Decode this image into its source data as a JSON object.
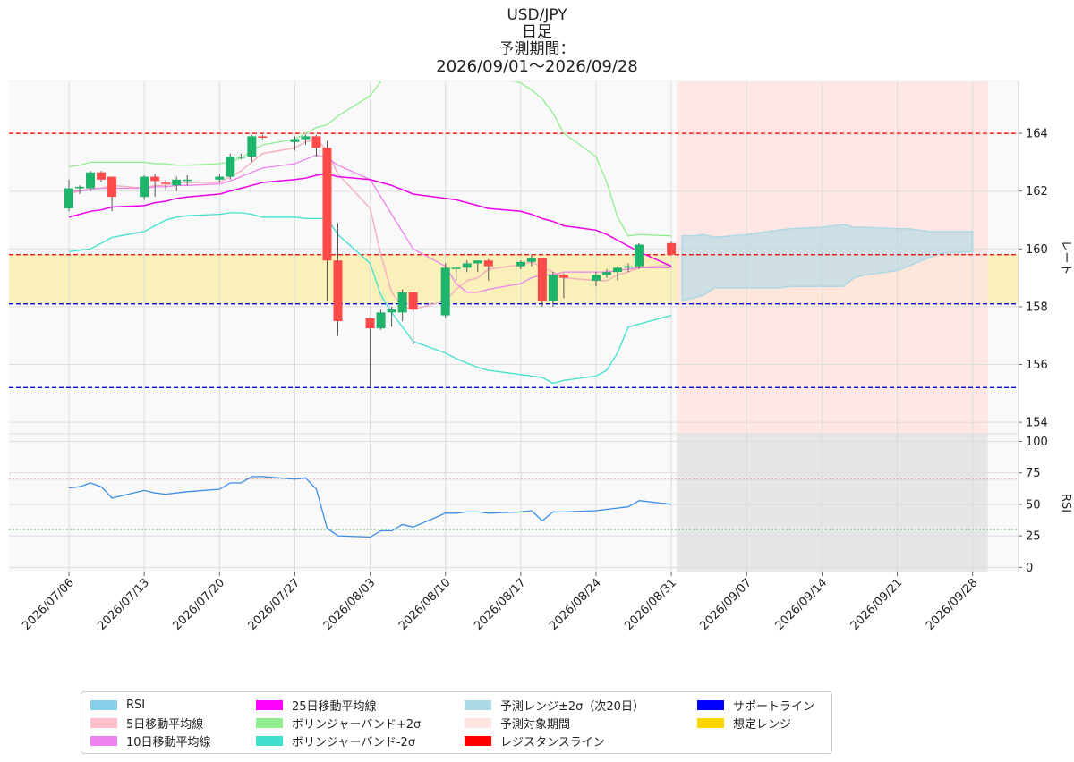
{
  "title": {
    "line1": "USD/JPY",
    "line2": "日足",
    "line3": "予測期間：",
    "line4": "2026/09/01〜2026/09/28"
  },
  "colors": {
    "up": "#1fb46b",
    "down": "#ff4a4a",
    "ma5": "#f3b3bd",
    "ma10": "#ee82ee",
    "ma25": "#ee00ee",
    "bb_upper": "#90ee90",
    "bb_lower": "#40e0d0",
    "forecast_band": "#add8e6",
    "forecast_period": "#ffe4e1",
    "assumed_range": "#ffd700",
    "support": "#0000dd",
    "resistance": "#ee0000",
    "rsi": "#3b8ee8"
  },
  "chart_data": [
    {
      "type": "candlestick",
      "ylabel": "レート",
      "ylim": [
        153.6,
        165.8
      ],
      "yticks": [
        "154",
        "156",
        "158",
        "160",
        "162",
        "164"
      ],
      "xticks": [
        "2026/07/06",
        "2026/07/13",
        "2026/07/20",
        "2026/07/27",
        "2026/08/03",
        "2026/08/10",
        "2026/08/17",
        "2026/08/24",
        "2026/08/31",
        "2026/09/07",
        "2026/09/14",
        "2026/09/21",
        "2026/09/28"
      ],
      "resistance_lines": [
        164.0,
        159.8
      ],
      "support_lines": [
        158.1,
        155.2
      ],
      "assumed_range": [
        158.1,
        159.8
      ],
      "forecast_period": [
        "2026/09/01",
        "2026/09/28"
      ],
      "candles": [
        {
          "date": "2026/07/06",
          "open": 161.4,
          "high": 162.4,
          "low": 161.3,
          "close": 162.1
        },
        {
          "date": "2026/07/07",
          "open": 162.1,
          "high": 162.2,
          "low": 161.9,
          "close": 162.15
        },
        {
          "date": "2026/07/08",
          "open": 162.1,
          "high": 162.7,
          "low": 162.0,
          "close": 162.65
        },
        {
          "date": "2026/07/09",
          "open": 162.65,
          "high": 162.7,
          "low": 162.3,
          "close": 162.4
        },
        {
          "date": "2026/07/10",
          "open": 162.5,
          "high": 162.5,
          "low": 161.3,
          "close": 161.8
        },
        {
          "date": "2026/07/13",
          "open": 161.8,
          "high": 162.55,
          "low": 161.7,
          "close": 162.5
        },
        {
          "date": "2026/07/14",
          "open": 162.5,
          "high": 162.6,
          "low": 161.8,
          "close": 162.35
        },
        {
          "date": "2026/07/15",
          "open": 162.3,
          "high": 162.4,
          "low": 162.0,
          "close": 162.25
        },
        {
          "date": "2026/07/16",
          "open": 162.2,
          "high": 162.5,
          "low": 162.0,
          "close": 162.4
        },
        {
          "date": "2026/07/17",
          "open": 162.4,
          "high": 162.55,
          "low": 162.2,
          "close": 162.4
        },
        {
          "date": "2026/07/20",
          "open": 162.4,
          "high": 162.6,
          "low": 162.3,
          "close": 162.5
        },
        {
          "date": "2026/07/21",
          "open": 162.5,
          "high": 163.3,
          "low": 162.4,
          "close": 163.2
        },
        {
          "date": "2026/07/22",
          "open": 163.2,
          "high": 163.3,
          "low": 163.1,
          "close": 163.2
        },
        {
          "date": "2026/07/23",
          "open": 163.2,
          "high": 163.95,
          "low": 163.0,
          "close": 163.9
        },
        {
          "date": "2026/07/24",
          "open": 163.9,
          "high": 163.95,
          "low": 163.8,
          "close": 163.85
        },
        {
          "date": "2026/07/27",
          "open": 163.7,
          "high": 163.9,
          "low": 163.4,
          "close": 163.8
        },
        {
          "date": "2026/07/28",
          "open": 163.8,
          "high": 163.95,
          "low": 163.6,
          "close": 163.9
        },
        {
          "date": "2026/07/29",
          "open": 163.9,
          "high": 163.95,
          "low": 163.2,
          "close": 163.5
        },
        {
          "date": "2026/07/30",
          "open": 163.5,
          "high": 163.75,
          "low": 158.2,
          "close": 159.6
        },
        {
          "date": "2026/07/31",
          "open": 159.6,
          "high": 160.9,
          "low": 157.0,
          "close": 157.5
        },
        {
          "date": "2026/08/03",
          "open": 157.6,
          "high": 157.6,
          "low": 155.2,
          "close": 157.25
        },
        {
          "date": "2026/08/04",
          "open": 157.25,
          "high": 157.9,
          "low": 157.2,
          "close": 157.8
        },
        {
          "date": "2026/08/05",
          "open": 157.8,
          "high": 158.0,
          "low": 157.3,
          "close": 157.9
        },
        {
          "date": "2026/08/06",
          "open": 157.8,
          "high": 158.6,
          "low": 157.5,
          "close": 158.5
        },
        {
          "date": "2026/08/07",
          "open": 158.5,
          "high": 158.5,
          "low": 156.7,
          "close": 157.9
        },
        {
          "date": "2026/08/10",
          "open": 157.7,
          "high": 159.5,
          "low": 157.6,
          "close": 159.35
        },
        {
          "date": "2026/08/11",
          "open": 159.35,
          "high": 159.4,
          "low": 158.9,
          "close": 159.35
        },
        {
          "date": "2026/08/12",
          "open": 159.35,
          "high": 159.6,
          "low": 159.2,
          "close": 159.5
        },
        {
          "date": "2026/08/13",
          "open": 159.5,
          "high": 159.6,
          "low": 159.2,
          "close": 159.6
        },
        {
          "date": "2026/08/14",
          "open": 159.6,
          "high": 159.65,
          "low": 158.9,
          "close": 159.4
        },
        {
          "date": "2026/08/17",
          "open": 159.4,
          "high": 159.6,
          "low": 159.3,
          "close": 159.55
        },
        {
          "date": "2026/08/18",
          "open": 159.55,
          "high": 159.8,
          "low": 159.4,
          "close": 159.7
        },
        {
          "date": "2026/08/19",
          "open": 159.7,
          "high": 159.7,
          "low": 158.0,
          "close": 158.2
        },
        {
          "date": "2026/08/20",
          "open": 158.2,
          "high": 159.2,
          "low": 158.0,
          "close": 159.1
        },
        {
          "date": "2026/08/21",
          "open": 159.1,
          "high": 159.15,
          "low": 158.3,
          "close": 159.0
        },
        {
          "date": "2026/08/24",
          "open": 158.9,
          "high": 159.2,
          "low": 158.7,
          "close": 159.1
        },
        {
          "date": "2026/08/25",
          "open": 159.1,
          "high": 159.3,
          "low": 159.0,
          "close": 159.2
        },
        {
          "date": "2026/08/26",
          "open": 159.2,
          "high": 159.4,
          "low": 158.9,
          "close": 159.35
        },
        {
          "date": "2026/08/27",
          "open": 159.35,
          "high": 159.5,
          "low": 159.2,
          "close": 159.4
        },
        {
          "date": "2026/08/28",
          "open": 159.4,
          "high": 160.2,
          "low": 159.3,
          "close": 160.15
        },
        {
          "date": "2026/08/31",
          "open": 160.2,
          "high": 160.25,
          "low": 159.8,
          "close": 159.8
        }
      ],
      "series": [
        {
          "name": "5日移動平均線",
          "values": [
            161.9,
            162.0,
            162.1,
            162.1,
            162.2,
            162.1,
            162.2,
            162.2,
            162.3,
            162.3,
            162.3,
            162.5,
            162.7,
            163.0,
            163.3,
            163.5,
            163.7,
            163.8,
            163.4,
            162.6,
            161.4,
            159.8,
            158.5,
            158.0,
            157.9,
            158.2,
            158.6,
            158.9,
            159.0,
            159.3,
            159.45,
            159.55,
            159.35,
            159.2,
            159.0,
            158.9,
            158.9,
            159.1,
            159.2,
            159.35,
            159.45
          ]
        },
        {
          "name": "10日移動平均線",
          "values": [
            162.0,
            162.0,
            162.05,
            162.1,
            162.1,
            162.1,
            162.15,
            162.15,
            162.2,
            162.2,
            162.25,
            162.35,
            162.5,
            162.65,
            162.8,
            162.95,
            163.1,
            163.25,
            163.15,
            162.9,
            162.4,
            161.8,
            161.2,
            160.6,
            160.0,
            159.4,
            158.8,
            158.5,
            158.5,
            158.6,
            158.8,
            159.0,
            159.1,
            159.1,
            159.2,
            159.2,
            159.2,
            159.25,
            159.3,
            159.35,
            159.35
          ]
        },
        {
          "name": "25日移動平均線",
          "values": [
            161.1,
            161.2,
            161.3,
            161.35,
            161.45,
            161.5,
            161.6,
            161.65,
            161.75,
            161.8,
            161.9,
            162.0,
            162.1,
            162.2,
            162.3,
            162.4,
            162.45,
            162.55,
            162.6,
            162.5,
            162.4,
            162.3,
            162.2,
            162.05,
            161.9,
            161.75,
            161.7,
            161.6,
            161.5,
            161.4,
            161.3,
            161.2,
            161.05,
            160.95,
            160.8,
            160.65,
            160.5,
            160.3,
            160.1,
            159.9,
            159.4
          ]
        },
        {
          "name": "ボリンジャーバンド+2σ",
          "values": [
            162.85,
            162.9,
            163.0,
            163.0,
            163.0,
            163.0,
            162.95,
            162.95,
            162.9,
            162.9,
            162.95,
            163.0,
            163.15,
            163.4,
            163.6,
            163.8,
            164.0,
            164.2,
            164.3,
            164.6,
            165.3,
            165.8,
            166.1,
            166.3,
            166.4,
            166.4,
            166.35,
            166.25,
            166.1,
            165.95,
            165.75,
            165.5,
            165.2,
            164.7,
            164.0,
            163.2,
            162.3,
            161.1,
            160.45,
            160.5,
            160.45
          ]
        },
        {
          "name": "ボリンジャーバンド-2σ",
          "values": [
            159.9,
            159.95,
            160.0,
            160.2,
            160.4,
            160.6,
            160.8,
            161.0,
            161.1,
            161.15,
            161.2,
            161.25,
            161.25,
            161.2,
            161.1,
            161.1,
            161.05,
            161.05,
            161.05,
            160.5,
            159.5,
            158.4,
            157.8,
            157.3,
            156.8,
            156.4,
            156.2,
            156.05,
            155.9,
            155.8,
            155.65,
            155.6,
            155.55,
            155.35,
            155.45,
            155.6,
            155.8,
            156.4,
            157.3,
            157.4,
            157.7
          ]
        },
        {
          "name": "予測レンジ±2σ（次20日）",
          "upper": [
            160.45,
            160.45,
            160.5,
            160.4,
            160.5,
            160.55,
            160.6,
            160.65,
            160.7,
            160.75,
            160.8,
            160.85,
            160.75,
            160.75,
            160.7,
            160.7,
            160.65,
            160.6,
            160.6,
            160.6
          ],
          "lower": [
            158.2,
            158.3,
            158.4,
            158.65,
            158.65,
            158.65,
            158.65,
            158.65,
            158.7,
            158.7,
            158.7,
            158.7,
            159.0,
            159.1,
            159.25,
            159.4,
            159.55,
            159.7,
            159.85,
            159.9
          ]
        }
      ]
    },
    {
      "type": "line",
      "ylabel": "RSI",
      "ylim": [
        -4,
        106
      ],
      "yticks": [
        "0",
        "25",
        "50",
        "75",
        "100"
      ],
      "reference_lines": [
        70,
        30
      ],
      "series": [
        {
          "name": "RSI",
          "values": [
            63,
            64,
            67,
            64,
            55,
            61,
            59,
            58,
            59,
            60,
            62,
            67,
            67,
            72,
            72,
            70,
            71,
            62,
            31,
            25,
            24,
            29,
            29,
            34,
            32,
            43,
            43,
            44,
            44,
            43,
            44,
            45,
            37,
            44,
            44,
            45,
            46,
            47,
            48,
            53,
            50
          ]
        }
      ]
    }
  ],
  "legend": [
    {
      "label": "RSI",
      "color": "#87ceeb"
    },
    {
      "label": "5日移動平均線",
      "color": "#ffc0cb"
    },
    {
      "label": "10日移動平均線",
      "color": "#ee82ee"
    },
    {
      "label": "25日移動平均線",
      "color": "#ff00ff"
    },
    {
      "label": "ボリンジャーバンド+2σ",
      "color": "#90ee90"
    },
    {
      "label": "ボリンジャーバンド-2σ",
      "color": "#40e0d0"
    },
    {
      "label": "予測レンジ±2σ（次20日）",
      "color": "#add8e6"
    },
    {
      "label": "予測対象期間",
      "color": "#ffe4e1"
    },
    {
      "label": "レジスタンスライン",
      "color": "#ff0000"
    },
    {
      "label": "サポートライン",
      "color": "#0000ff"
    },
    {
      "label": "想定レンジ",
      "color": "#ffd700"
    }
  ]
}
